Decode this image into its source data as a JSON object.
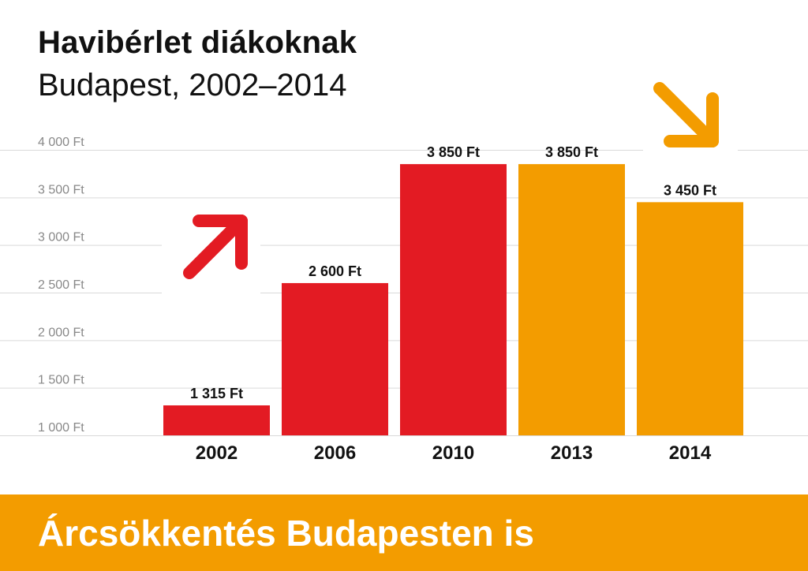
{
  "header": {
    "title": "Havibérlet diákoknak",
    "subtitle": "Budapest, 2002–2014"
  },
  "footer": {
    "banner_text": "Árcsökkentés Budapesten is"
  },
  "colors": {
    "red": "#e31b23",
    "orange": "#f39c00",
    "grid": "#d9d9d9",
    "tick_text": "#888888"
  },
  "chart_data": {
    "type": "bar",
    "title": "Havibérlet diákoknak",
    "subtitle": "Budapest, 2002–2014",
    "categories": [
      "2002",
      "2006",
      "2010",
      "2013",
      "2014"
    ],
    "values": [
      1315,
      2600,
      3850,
      3850,
      3450
    ],
    "value_labels": [
      "1 315 Ft",
      "2 600 Ft",
      "3 850 Ft",
      "3 850 Ft",
      "3 450 Ft"
    ],
    "bar_colors": [
      "#e31b23",
      "#e31b23",
      "#e31b23",
      "#f39c00",
      "#f39c00"
    ],
    "ylim": [
      1000,
      4000
    ],
    "yticks": [
      1000,
      1500,
      2000,
      2500,
      3000,
      3500,
      4000
    ],
    "ytick_labels": [
      "1 000 Ft",
      "1 500 Ft",
      "2 000 Ft",
      "2 500 Ft",
      "3 000 Ft",
      "3 500 Ft",
      "4 000 Ft"
    ],
    "grid": true,
    "annotations": [
      {
        "type": "arrow",
        "direction": "up-right",
        "color": "#e31b23"
      },
      {
        "type": "arrow",
        "direction": "down-right",
        "color": "#f39c00"
      }
    ]
  }
}
